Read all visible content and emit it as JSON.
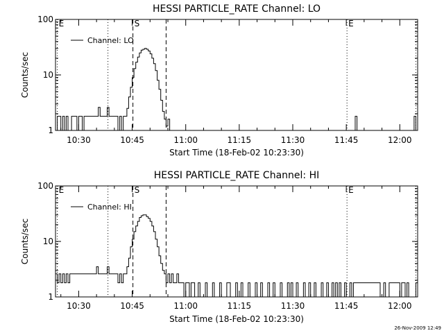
{
  "footer": {
    "timestamp": "26-Nov-2009 12:49"
  },
  "chart_data": [
    {
      "type": "line",
      "title": "HESSI PARTICLE_RATE Channel: LO",
      "xlabel": "Start Time (18-Feb-02 10:23:30)",
      "ylabel": "Counts/sec",
      "yscale": "log",
      "ylim": [
        1,
        100
      ],
      "xlim_minutes": [
        23.5,
        125
      ],
      "yticks": [
        {
          "value": 1,
          "label": "1"
        },
        {
          "value": 10,
          "label": "10"
        },
        {
          "value": 100,
          "label": "100"
        }
      ],
      "xticks": [
        {
          "minute": 30,
          "label": "10:30"
        },
        {
          "minute": 45,
          "label": "10:45"
        },
        {
          "minute": 60,
          "label": "11:00"
        },
        {
          "minute": 75,
          "label": "11:15"
        },
        {
          "minute": 90,
          "label": "11:30"
        },
        {
          "minute": 105,
          "label": "11:45"
        },
        {
          "minute": 120,
          "label": "12:00"
        }
      ],
      "legend": {
        "label": "Channel: LO",
        "location": "top-left"
      },
      "markers": [
        {
          "minute": 24,
          "style": "dotted",
          "label": "E"
        },
        {
          "minute": 38.2,
          "style": "dotted",
          "label": ""
        },
        {
          "minute": 45.2,
          "style": "dashed",
          "label": "S"
        },
        {
          "minute": 54.5,
          "style": "dashed",
          "label": ""
        },
        {
          "minute": 105.2,
          "style": "dotted",
          "label": "E"
        },
        {
          "minute": 124.5,
          "style": "dotted",
          "label": ""
        }
      ],
      "series": [
        {
          "name": "Channel: LO",
          "x": [
            23.5,
            24,
            24.5,
            25,
            25.5,
            26,
            26.5,
            27,
            27.5,
            28,
            28.5,
            29,
            29.5,
            30,
            30.5,
            31,
            31.5,
            32,
            32.5,
            33,
            33.5,
            34,
            34.5,
            35,
            35.5,
            36,
            36.5,
            37,
            37.5,
            38,
            38.5,
            39,
            39.5,
            40,
            40.5,
            41,
            41.5,
            42,
            42.5,
            43,
            43.5,
            44,
            44.5,
            45,
            45.5,
            46,
            46.5,
            47,
            47.5,
            48,
            48.5,
            49,
            49.5,
            50,
            50.5,
            51,
            51.5,
            52,
            52.5,
            53,
            53.5,
            54,
            54.5,
            55,
            55.5,
            56,
            56.5,
            57,
            57.5,
            58,
            58.5,
            59,
            60,
            70,
            80,
            90,
            100,
            107,
            107.5,
            108,
            108.5,
            109,
            115,
            120,
            123.5,
            124,
            124.5,
            125
          ],
          "values": [
            1,
            1.8,
            1.8,
            1,
            1.8,
            1,
            1.8,
            1,
            1,
            1.8,
            1.8,
            1.8,
            1,
            1.8,
            1.8,
            1,
            1.8,
            1.8,
            1.8,
            1.8,
            1.8,
            1.8,
            1.8,
            1.8,
            2.6,
            1.8,
            1.8,
            1.8,
            1.8,
            2.6,
            1.8,
            1.8,
            1.8,
            1.8,
            1.8,
            1,
            1.8,
            1,
            1.8,
            1.8,
            2.5,
            4,
            6,
            9,
            13,
            17,
            21,
            25,
            28,
            29,
            30,
            29,
            27,
            24,
            20,
            16,
            12,
            8,
            5.5,
            3.5,
            2.2,
            1.6,
            1.2,
            1.6,
            1,
            1,
            1,
            1,
            1,
            1,
            1,
            1,
            1,
            1,
            1,
            1,
            1,
            1,
            1.8,
            1,
            1,
            1,
            1,
            1,
            1,
            1.8,
            1,
            1
          ]
        }
      ]
    },
    {
      "type": "line",
      "title": "HESSI PARTICLE_RATE Channel: HI",
      "xlabel": "Start Time (18-Feb-02 10:23:30)",
      "ylabel": "Counts/sec",
      "yscale": "log",
      "ylim": [
        1,
        100
      ],
      "xlim_minutes": [
        23.5,
        125
      ],
      "yticks": [
        {
          "value": 1,
          "label": "1"
        },
        {
          "value": 10,
          "label": "10"
        },
        {
          "value": 100,
          "label": "100"
        }
      ],
      "xticks": [
        {
          "minute": 30,
          "label": "10:30"
        },
        {
          "minute": 45,
          "label": "10:45"
        },
        {
          "minute": 60,
          "label": "11:00"
        },
        {
          "minute": 75,
          "label": "11:15"
        },
        {
          "minute": 90,
          "label": "11:30"
        },
        {
          "minute": 105,
          "label": "11:45"
        },
        {
          "minute": 120,
          "label": "12:00"
        }
      ],
      "legend": {
        "label": "Channel: HI",
        "location": "top-left"
      },
      "markers": [
        {
          "minute": 24,
          "style": "dotted",
          "label": "E"
        },
        {
          "minute": 38.2,
          "style": "dotted",
          "label": ""
        },
        {
          "minute": 45.2,
          "style": "dashed",
          "label": "S"
        },
        {
          "minute": 54.5,
          "style": "dashed",
          "label": ""
        },
        {
          "minute": 105.2,
          "style": "dotted",
          "label": "E"
        },
        {
          "minute": 124.5,
          "style": "dotted",
          "label": ""
        }
      ],
      "series": [
        {
          "name": "Channel: HI",
          "x": [
            23.5,
            24,
            24.5,
            25,
            25.5,
            26,
            26.5,
            27,
            27.5,
            28,
            28.5,
            29,
            29.5,
            30,
            30.5,
            31,
            31.5,
            32,
            32.5,
            33,
            33.5,
            34,
            34.5,
            35,
            35.5,
            36,
            36.5,
            37,
            37.5,
            38,
            38.5,
            39,
            39.5,
            40,
            40.5,
            41,
            41.5,
            42,
            42.5,
            43,
            43.5,
            44,
            44.5,
            45,
            45.5,
            46,
            46.5,
            47,
            47.5,
            48,
            48.5,
            49,
            49.5,
            50,
            50.5,
            51,
            51.5,
            52,
            52.5,
            53,
            53.5,
            54,
            54.5,
            55,
            55.5,
            56,
            56.5,
            57,
            57.5,
            58,
            58.5,
            59,
            59.5,
            60,
            60.5,
            61,
            61.5,
            62,
            62.5,
            63,
            63.5,
            64,
            64.5,
            65,
            65.5,
            66,
            66.5,
            67,
            67.5,
            68,
            68.5,
            69,
            69.5,
            70,
            70.5,
            71,
            71.5,
            72,
            72.5,
            73,
            73.5,
            74,
            74.5,
            75,
            75.5,
            76,
            76.5,
            77,
            77.5,
            78,
            78.5,
            79,
            79.5,
            80,
            80.5,
            81,
            81.5,
            82,
            82.5,
            83,
            83.5,
            84,
            84.5,
            85,
            85.5,
            86,
            86.5,
            87,
            87.5,
            88,
            88.5,
            89,
            89.5,
            90,
            90.5,
            91,
            91.5,
            92,
            92.5,
            93,
            93.5,
            94,
            94.5,
            95,
            95.5,
            96,
            96.5,
            97,
            97.5,
            98,
            98.5,
            99,
            99.5,
            100,
            100.5,
            101,
            101.5,
            102,
            102.5,
            103,
            103.5,
            104,
            104.5,
            105,
            105.5,
            106,
            106.5,
            107,
            107.5,
            108,
            108.5,
            109,
            109.5,
            110,
            110.5,
            111,
            111.5,
            112,
            112.5,
            113,
            113.5,
            114,
            114.5,
            115,
            115.5,
            116,
            116.5,
            117,
            117.5,
            118,
            118.5,
            119,
            119.5,
            120,
            120.5,
            121,
            121.5,
            122,
            122.5,
            123,
            123.5,
            124,
            124.5,
            125
          ],
          "values": [
            2.6,
            1.8,
            2.6,
            1.8,
            2.6,
            1.8,
            2.6,
            1.8,
            2.6,
            2.6,
            2.6,
            2.6,
            2.6,
            2.6,
            2.6,
            2.6,
            2.6,
            2.6,
            2.6,
            2.6,
            2.6,
            2.6,
            2.6,
            3.5,
            2.6,
            2.6,
            2.6,
            2.6,
            2.6,
            3.5,
            2.6,
            2.6,
            2.6,
            2.6,
            2.6,
            1.8,
            2.6,
            1.8,
            2.6,
            2.6,
            3.5,
            5,
            8,
            11,
            15,
            19,
            23,
            27,
            29,
            30,
            30,
            28,
            26,
            23,
            19,
            15,
            11,
            8,
            5.5,
            4,
            3,
            2.6,
            1.8,
            2.6,
            1.8,
            2.6,
            1.8,
            1.8,
            2.6,
            1.8,
            1.8,
            1.8,
            1,
            1.8,
            1.8,
            1,
            1.8,
            1.8,
            1,
            1,
            1.8,
            1,
            1,
            1,
            1.8,
            1,
            1,
            1,
            1.8,
            1,
            1,
            1,
            1.8,
            1,
            1,
            1,
            1.8,
            1.8,
            1,
            1,
            1,
            1.8,
            1,
            1,
            1.8,
            1,
            1,
            1,
            1.8,
            1,
            1,
            1,
            1.8,
            1,
            1,
            1.8,
            1,
            1,
            1,
            1.8,
            1,
            1,
            1.8,
            1,
            1,
            1,
            1.8,
            1,
            1,
            1,
            1.8,
            1,
            1.8,
            1,
            1,
            1.8,
            1,
            1,
            1,
            1.8,
            1,
            1,
            1.8,
            1,
            1,
            1.8,
            1,
            1,
            1,
            1.8,
            1,
            1,
            1.8,
            1,
            1,
            1.8,
            1,
            1.8,
            1,
            1.8,
            1,
            1,
            1.8,
            1,
            1,
            1.8,
            1,
            1.8,
            1.8,
            1.8,
            1.8,
            1.8,
            1.8,
            1.8,
            1.8,
            1.8,
            1.8,
            1.8,
            1.8,
            1.8,
            1.8,
            1.8,
            1,
            1,
            1.8,
            1,
            1,
            1.8,
            1.8,
            1.8,
            1.8,
            1.8,
            1.8,
            1,
            1.8,
            1.8,
            1,
            1.8,
            1,
            1,
            1,
            1,
            1.8,
            2.6
          ]
        }
      ]
    }
  ]
}
